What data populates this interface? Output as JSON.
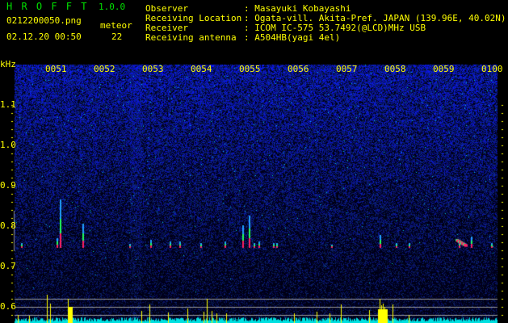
{
  "header": {
    "app_title": "H R O F F T",
    "version": "1.0.0",
    "filename": "0212200050.png",
    "datetime": "02.12.20 00:50",
    "meteor_label": "meteor",
    "meteor_count": "22",
    "info": [
      {
        "label": "Observer",
        "value": ": Masayuki Kobayashi"
      },
      {
        "label": "Receiving Location",
        "value": ": Ogata-vill. Akita-Pref. JAPAN (139.96E, 40.02N)"
      },
      {
        "label": "Receiver",
        "value": ": ICOM IC-575 53.7492(@LCD)MHz USB"
      },
      {
        "label": "Receiving antenna",
        "value": ": A504HB(yagi 4el)"
      }
    ]
  },
  "spectrogram": {
    "y_unit": "kHz",
    "y_ticks": [
      "1.1",
      "1.0",
      "0.9",
      "0.8",
      "0.7",
      "0.6"
    ],
    "time_ticks": [
      "0051",
      "0052",
      "0053",
      "0054",
      "0055",
      "0056",
      "0057",
      "0058",
      "0059",
      "0100"
    ],
    "colors": {
      "background": "#000010",
      "noise": "#1a1aa0",
      "signal_peak": "#ff2060",
      "count_bar": "#ffff00",
      "noise_floor": "#00e0e0"
    }
  }
}
